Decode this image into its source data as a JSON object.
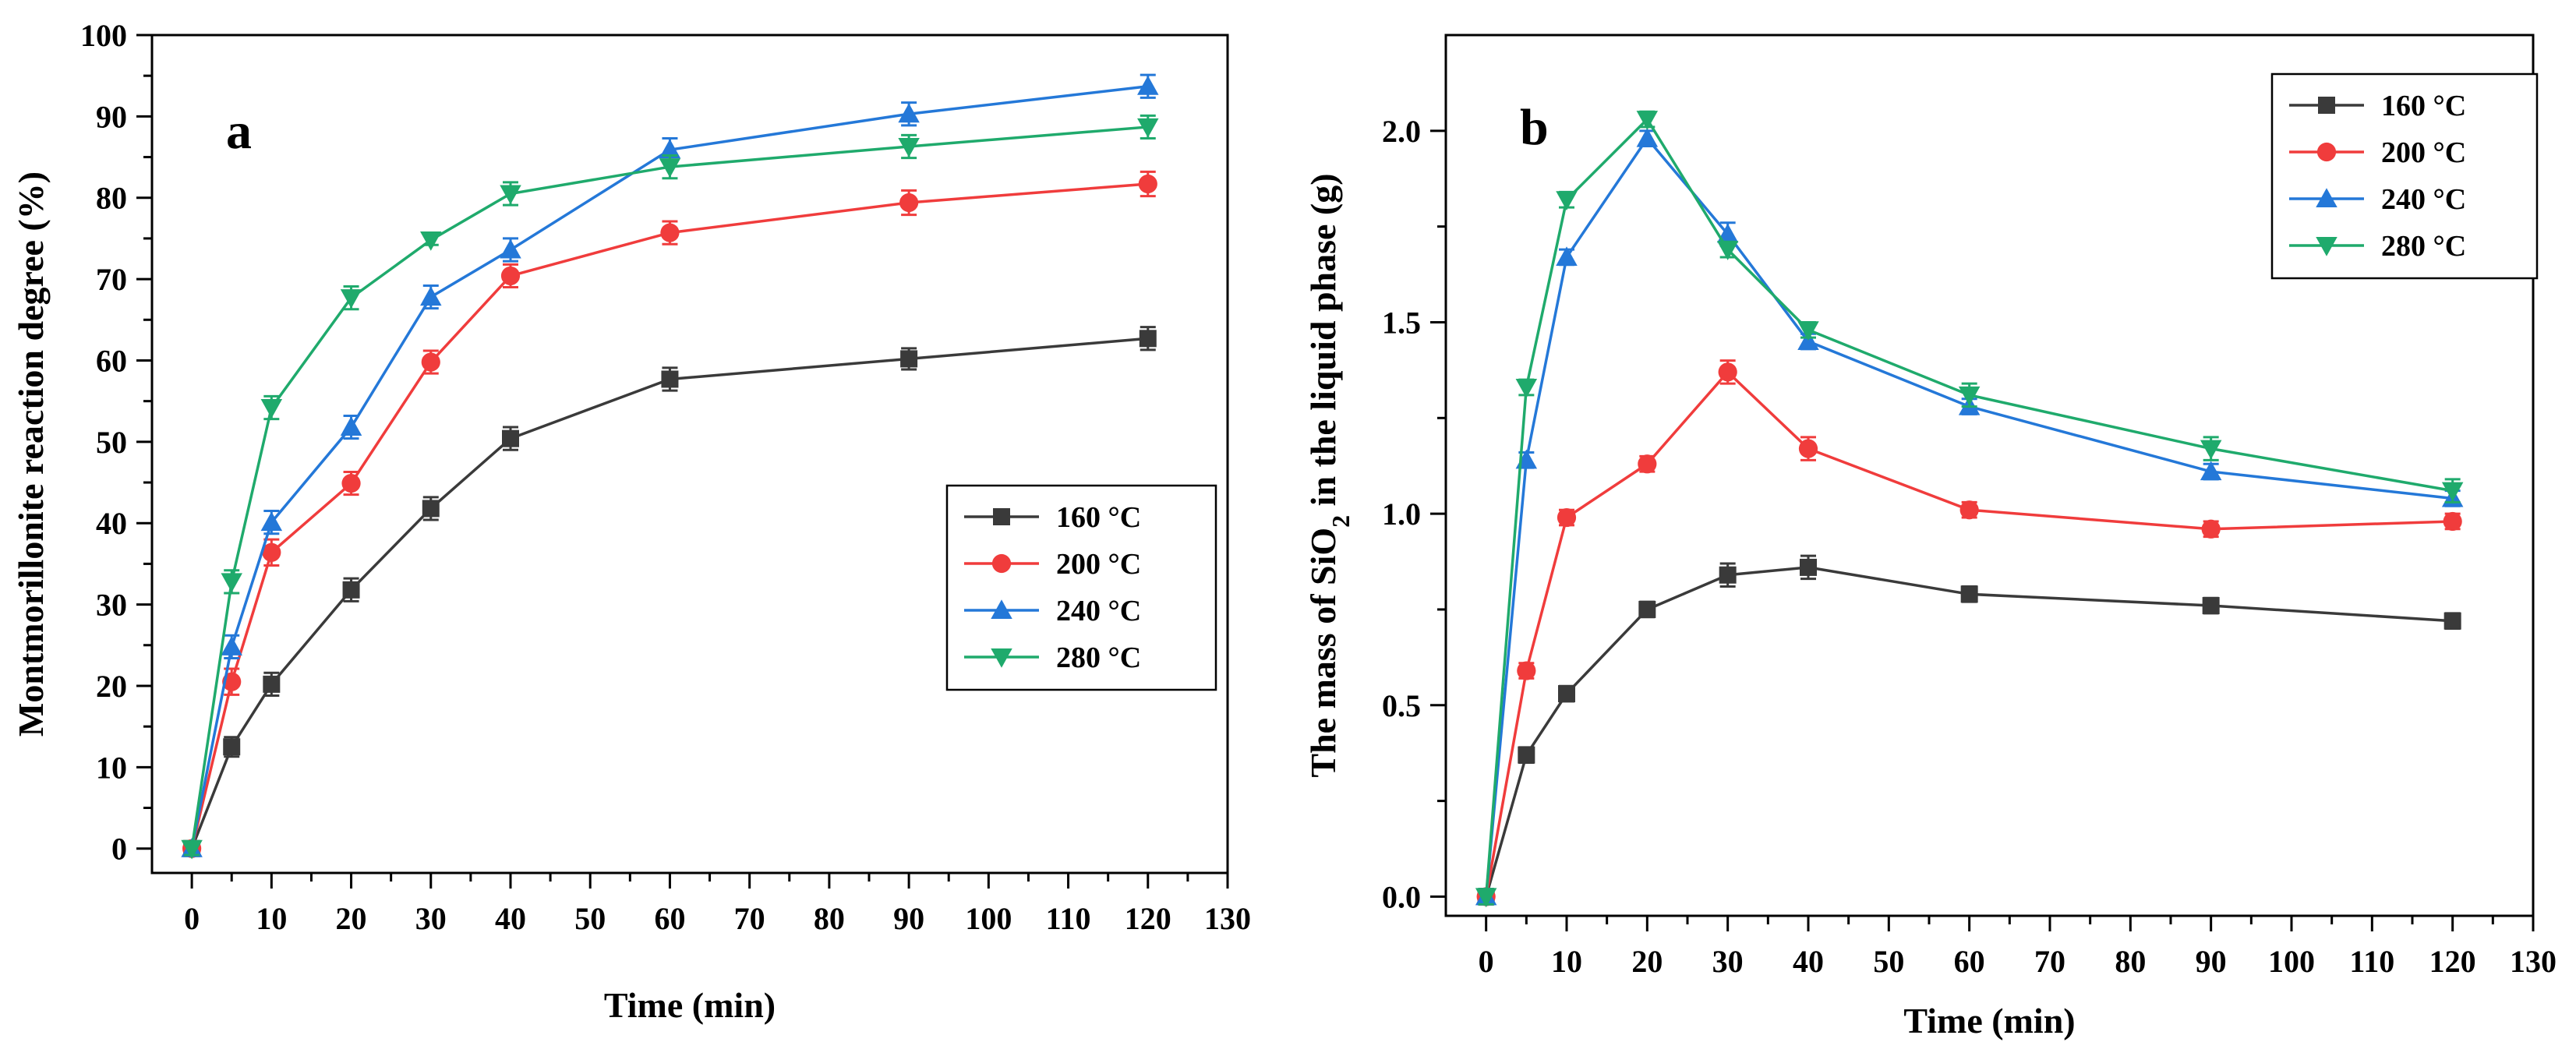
{
  "figure": {
    "panels": [
      "a",
      "b"
    ]
  },
  "colors": {
    "160 °C": "#3a3a3a",
    "200 °C": "#f03c3c",
    "240 °C": "#2478d8",
    "280 °C": "#1faa6c"
  },
  "chart_data": [
    {
      "type": "line",
      "panel_label": "a",
      "title": "",
      "xlabel": "Time (min)",
      "ylabel": "Montmorillonite reaction degree (%)",
      "xlim": [
        -5,
        130
      ],
      "ylim": [
        -3,
        100
      ],
      "xticks": [
        0,
        10,
        20,
        30,
        40,
        50,
        60,
        70,
        80,
        90,
        100,
        110,
        120,
        130
      ],
      "yticks": [
        0,
        10,
        20,
        30,
        40,
        50,
        60,
        70,
        80,
        90,
        100
      ],
      "x": [
        0,
        5,
        10,
        20,
        30,
        40,
        60,
        90,
        120
      ],
      "legend_position": "lower-right",
      "series": [
        {
          "name": "160 °C",
          "marker": "square",
          "values": [
            0,
            12.5,
            20.2,
            31.8,
            41.8,
            50.4,
            57.7,
            60.2,
            62.7
          ],
          "errors": [
            0.8,
            1.2,
            1.4,
            1.4,
            1.4,
            1.4,
            1.4,
            1.3,
            1.4
          ]
        },
        {
          "name": "200 °C",
          "marker": "circle",
          "values": [
            0,
            20.5,
            36.4,
            44.9,
            59.8,
            70.4,
            75.7,
            79.4,
            81.7
          ],
          "errors": [
            0.8,
            1.6,
            1.6,
            1.4,
            1.4,
            1.4,
            1.4,
            1.5,
            1.5
          ]
        },
        {
          "name": "240 °C",
          "marker": "triangle-up",
          "values": [
            0,
            24.8,
            40.1,
            51.8,
            67.8,
            73.6,
            85.9,
            90.3,
            93.7
          ],
          "errors": [
            0.8,
            1.4,
            1.4,
            1.4,
            1.4,
            1.4,
            1.4,
            1.4,
            1.4
          ]
        },
        {
          "name": "280 °C",
          "marker": "triangle-down",
          "values": [
            0,
            32.8,
            54.2,
            67.7,
            74.8,
            80.5,
            83.8,
            86.3,
            88.7
          ],
          "errors": [
            0.8,
            1.4,
            1.4,
            1.4,
            0.6,
            1.4,
            1.4,
            1.4,
            1.4
          ]
        }
      ]
    },
    {
      "type": "line",
      "panel_label": "b",
      "title": "",
      "xlabel": "Time (min)",
      "ylabel": "The mass of SiO2 in the liquid phase (g)",
      "ylabel_parts": {
        "pre": "The mass of SiO",
        "sub": "2",
        "post": " in the liquid phase (g)"
      },
      "xlim": [
        -5,
        130
      ],
      "ylim": [
        -0.05,
        2.25
      ],
      "xticks": [
        0,
        10,
        20,
        30,
        40,
        50,
        60,
        70,
        80,
        90,
        100,
        110,
        120,
        130
      ],
      "yticks": [
        0.0,
        0.5,
        1.0,
        1.5,
        2.0
      ],
      "ytick_labels": [
        "0.0",
        "0.5",
        "1.0",
        "1.5",
        "2.0"
      ],
      "x": [
        0,
        5,
        10,
        20,
        30,
        40,
        60,
        90,
        120
      ],
      "legend_position": "top-right",
      "series": [
        {
          "name": "160 °C",
          "marker": "square",
          "values": [
            0,
            0.37,
            0.53,
            0.75,
            0.84,
            0.86,
            0.79,
            0.76,
            0.72
          ],
          "errors": [
            0.02,
            0.02,
            0.02,
            0.02,
            0.03,
            0.03,
            0.02,
            0.02,
            0.02
          ]
        },
        {
          "name": "200 °C",
          "marker": "circle",
          "values": [
            0,
            0.59,
            0.99,
            1.13,
            1.37,
            1.17,
            1.01,
            0.96,
            0.98
          ],
          "errors": [
            0.02,
            0.02,
            0.02,
            0.02,
            0.03,
            0.03,
            0.02,
            0.02,
            0.02
          ]
        },
        {
          "name": "240 °C",
          "marker": "triangle-up",
          "values": [
            0,
            1.14,
            1.67,
            1.98,
            1.73,
            1.45,
            1.28,
            1.11,
            1.04
          ],
          "errors": [
            0.02,
            0.02,
            0.02,
            0.02,
            0.03,
            0.02,
            0.02,
            0.02,
            0.02
          ]
        },
        {
          "name": "280 °C",
          "marker": "triangle-down",
          "values": [
            0,
            1.33,
            1.82,
            2.03,
            1.69,
            1.48,
            1.31,
            1.17,
            1.06
          ],
          "errors": [
            0.02,
            0.02,
            0.02,
            0.02,
            0.02,
            0.02,
            0.03,
            0.03,
            0.03
          ]
        }
      ]
    }
  ]
}
